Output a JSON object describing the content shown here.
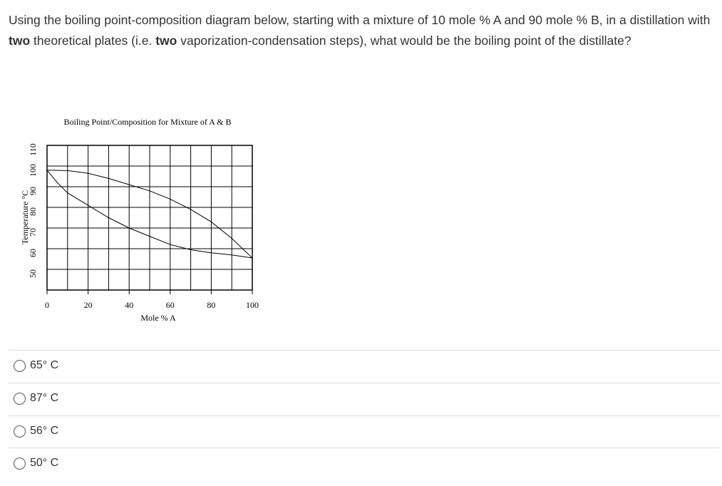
{
  "question": {
    "parts": [
      "Using the boiling point-composition diagram below, starting with a mixture of 10 mole % A and 90 mole % B, in a distillation with ",
      "two",
      " theoretical plates (i.e. ",
      "two",
      " vaporization-condensation steps), what would be the boiling point of the distillate?"
    ]
  },
  "chart_data": {
    "type": "line",
    "title": "Boiling Point/Composition for Mixture of A & B",
    "x_label": "Mole % A",
    "y_label": "Temperature °C",
    "xlim": [
      0,
      100
    ],
    "xticks": [
      0,
      20,
      40,
      60,
      80,
      100
    ],
    "ylim": [
      40,
      110
    ],
    "yticks": [
      50,
      60,
      70,
      80,
      90,
      100,
      110
    ],
    "grid": true,
    "series": [
      {
        "color": "#000000",
        "x": [
          0,
          10,
          20,
          30,
          40,
          50,
          60,
          70,
          80,
          90,
          100
        ],
        "values": [
          98,
          97.8,
          96.5,
          94,
          91,
          88,
          84,
          79,
          73,
          65,
          55.5
        ]
      },
      {
        "color": "#000000",
        "x": [
          0,
          5,
          10,
          20,
          30,
          40,
          50,
          60,
          70,
          80,
          90,
          100
        ],
        "values": [
          98,
          92,
          87,
          81,
          75,
          70,
          66,
          62,
          59.5,
          58,
          57,
          55.5
        ]
      }
    ]
  },
  "options": [
    "65° C",
    "87° C",
    "56° C",
    "50° C"
  ]
}
